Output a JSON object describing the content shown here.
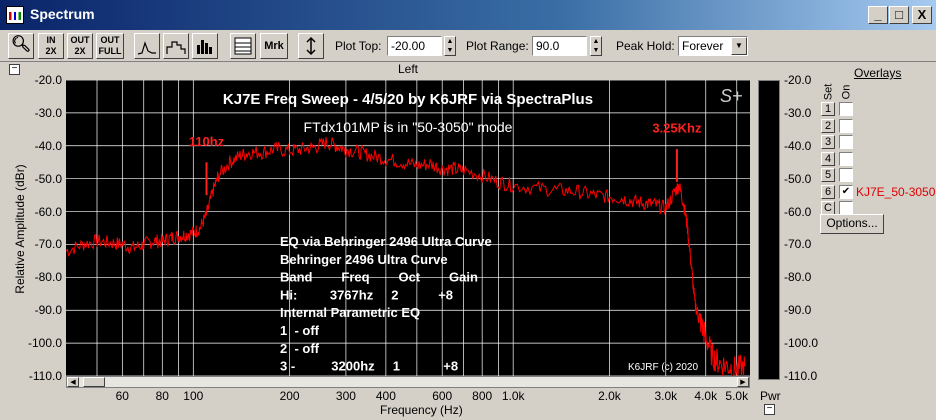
{
  "window": {
    "title": "Spectrum",
    "buttons": {
      "minimize": "_",
      "maximize": "□",
      "close": "X"
    }
  },
  "toolbar": {
    "zoom_in_2x": "IN\n2X",
    "zoom_out_2x": "OUT\n2X",
    "zoom_out_full": "OUT\nFULL",
    "marker_label": "Mrk",
    "plot_top_label": "Plot Top:",
    "plot_top_value": "-20.00",
    "plot_range_label": "Plot Range:",
    "plot_range_value": "90.0",
    "peak_hold_label": "Peak Hold:",
    "peak_hold_value": "Forever"
  },
  "plot": {
    "channel_label": "Left",
    "title": "KJ7E Freq Sweep - 4/5/20 by K6JRF via SpectraPlus",
    "subtitle": "FTdx101MP is in \"50-3050\" mode",
    "logo": "S+",
    "copyright": "K6JRF (c) 2020",
    "marker_low": "110hz",
    "marker_high": "3.25Khz",
    "notes": [
      "EQ via Behringer 2496 Ultra Curve",
      "Behringer 2496 Ultra Curve",
      "Band        Freq        Oct        Gain",
      "Hi:         3767hz     2           +8",
      "Internal Parametric EQ",
      "1  - off",
      "2  - off",
      "3 -          3200hz     1            +8"
    ],
    "pwr_label": "Pwr",
    "colors": {
      "background": "#000000",
      "grid": "#ffffff",
      "trace": "#ff0000",
      "marker": "#ff2020"
    }
  },
  "overlays": {
    "title": "Overlays",
    "head_set": "Set",
    "head_on": "On",
    "rows": [
      {
        "num": "1",
        "checked": "",
        "name": ""
      },
      {
        "num": "2",
        "checked": "",
        "name": ""
      },
      {
        "num": "3",
        "checked": "",
        "name": ""
      },
      {
        "num": "4",
        "checked": "",
        "name": ""
      },
      {
        "num": "5",
        "checked": "",
        "name": ""
      },
      {
        "num": "6",
        "checked": "✔",
        "name": "KJ7E_50-3050"
      },
      {
        "num": "C",
        "checked": "",
        "name": ""
      }
    ],
    "options_label": "Options..."
  },
  "chart_data": {
    "type": "line",
    "title": "KJ7E Freq Sweep - 4/5/20 by K6JRF via SpectraPlus",
    "xlabel": "Frequency (Hz)",
    "ylabel": "Relative Amplitude (dBr)",
    "x_scale": "log",
    "xlim": [
      40,
      5500
    ],
    "ylim": [
      -110,
      -20
    ],
    "x_ticks": [
      "60",
      "80",
      "100",
      "200",
      "300",
      "400",
      "600",
      "800",
      "1.0k",
      "2.0k",
      "3.0k",
      "4.0k",
      "5.0k"
    ],
    "x_tick_values": [
      60,
      80,
      100,
      200,
      300,
      400,
      600,
      800,
      1000,
      2000,
      3000,
      4000,
      5000
    ],
    "y_ticks": [
      "-20.0",
      "-30.0",
      "-40.0",
      "-50.0",
      "-60.0",
      "-70.0",
      "-80.0",
      "-90.0",
      "-100.0",
      "-110.0"
    ],
    "y_tick_values": [
      -20,
      -30,
      -40,
      -50,
      -60,
      -70,
      -80,
      -90,
      -100,
      -110
    ],
    "grid": true,
    "series": [
      {
        "name": "KJ7E_50-3050",
        "x": [
          40,
          45,
          50,
          55,
          60,
          65,
          70,
          75,
          80,
          85,
          90,
          95,
          100,
          105,
          110,
          115,
          120,
          130,
          140,
          150,
          165,
          180,
          200,
          220,
          240,
          260,
          280,
          300,
          330,
          360,
          400,
          450,
          500,
          550,
          600,
          650,
          700,
          800,
          900,
          1000,
          1200,
          1400,
          1600,
          1800,
          2000,
          2200,
          2400,
          2600,
          2800,
          3000,
          3200,
          3300,
          3400,
          3500,
          3600,
          3700,
          3800,
          3900,
          4000,
          4200,
          4400,
          4700,
          5000,
          5300
        ],
        "y": [
          -72,
          -70,
          -69,
          -69.5,
          -70,
          -71,
          -70,
          -69,
          -69,
          -68,
          -67.5,
          -67,
          -66.5,
          -65,
          -61,
          -54,
          -49,
          -45,
          -43,
          -42,
          -42,
          -41,
          -41.5,
          -41,
          -40.5,
          -39,
          -40,
          -41,
          -42,
          -43,
          -44,
          -45,
          -46,
          -45.5,
          -47,
          -47,
          -47.5,
          -49,
          -51,
          -52,
          -53,
          -53.5,
          -54,
          -55,
          -55.5,
          -56,
          -57,
          -57.5,
          -58,
          -59,
          -54,
          -52,
          -57,
          -64,
          -76,
          -88,
          -92,
          -95,
          -98,
          -104,
          -106,
          -107,
          -108,
          -107
        ]
      }
    ],
    "markers": [
      {
        "label": "110hz",
        "x": 110,
        "y": -52
      },
      {
        "label": "3.25Khz",
        "x": 3250,
        "y": -48
      }
    ]
  }
}
